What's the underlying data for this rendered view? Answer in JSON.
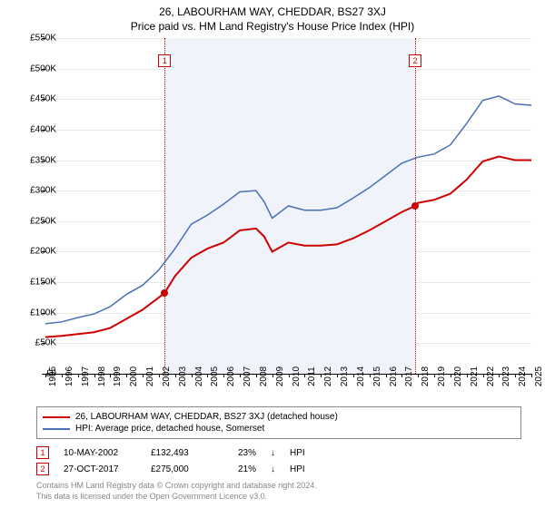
{
  "title": "26, LABOURHAM WAY, CHEDDAR, BS27 3XJ",
  "subtitle": "Price paid vs. HM Land Registry's House Price Index (HPI)",
  "chart": {
    "type": "line",
    "background_color": "#ffffff",
    "grid_color": "#e8e8e8",
    "shade_color": "#f0f3fa",
    "title_fontsize": 12,
    "label_fontsize": 10,
    "ylim": [
      0,
      550000
    ],
    "ytick_step": 50000,
    "y_ticks": [
      "£0",
      "£50K",
      "£100K",
      "£150K",
      "£200K",
      "£250K",
      "£300K",
      "£350K",
      "£400K",
      "£450K",
      "£500K",
      "£550K"
    ],
    "x_years": [
      1995,
      1996,
      1997,
      1998,
      1999,
      2000,
      2001,
      2002,
      2003,
      2004,
      2005,
      2006,
      2007,
      2008,
      2009,
      2010,
      2011,
      2012,
      2013,
      2014,
      2015,
      2016,
      2017,
      2018,
      2019,
      2020,
      2021,
      2022,
      2023,
      2024,
      2025
    ],
    "shade_start_year": 2002.36,
    "shade_end_year": 2017.82,
    "series": [
      {
        "name": "price_paid",
        "color": "#cc0000",
        "width": 2,
        "label": "26, LABOURHAM WAY, CHEDDAR, BS27 3XJ (detached house)",
        "points": [
          [
            1995,
            60000
          ],
          [
            1996,
            62000
          ],
          [
            1997,
            65000
          ],
          [
            1998,
            68000
          ],
          [
            1999,
            75000
          ],
          [
            2000,
            90000
          ],
          [
            2001,
            105000
          ],
          [
            2002,
            125000
          ],
          [
            2002.36,
            132493
          ],
          [
            2003,
            160000
          ],
          [
            2004,
            190000
          ],
          [
            2005,
            205000
          ],
          [
            2006,
            215000
          ],
          [
            2007,
            235000
          ],
          [
            2008,
            238000
          ],
          [
            2008.5,
            225000
          ],
          [
            2009,
            200000
          ],
          [
            2010,
            215000
          ],
          [
            2011,
            210000
          ],
          [
            2012,
            210000
          ],
          [
            2013,
            212000
          ],
          [
            2014,
            222000
          ],
          [
            2015,
            235000
          ],
          [
            2016,
            250000
          ],
          [
            2017,
            265000
          ],
          [
            2017.82,
            275000
          ],
          [
            2018,
            280000
          ],
          [
            2019,
            285000
          ],
          [
            2020,
            295000
          ],
          [
            2021,
            318000
          ],
          [
            2022,
            348000
          ],
          [
            2023,
            356000
          ],
          [
            2024,
            350000
          ],
          [
            2025,
            350000
          ]
        ]
      },
      {
        "name": "hpi",
        "color": "#4a6fb5",
        "width": 1.5,
        "label": "HPI: Average price, detached house, Somerset",
        "points": [
          [
            1995,
            82000
          ],
          [
            1996,
            85000
          ],
          [
            1997,
            92000
          ],
          [
            1998,
            98000
          ],
          [
            1999,
            110000
          ],
          [
            2000,
            130000
          ],
          [
            2001,
            145000
          ],
          [
            2002,
            170000
          ],
          [
            2003,
            205000
          ],
          [
            2004,
            245000
          ],
          [
            2005,
            260000
          ],
          [
            2006,
            278000
          ],
          [
            2007,
            298000
          ],
          [
            2008,
            300000
          ],
          [
            2008.5,
            282000
          ],
          [
            2009,
            255000
          ],
          [
            2010,
            275000
          ],
          [
            2011,
            268000
          ],
          [
            2012,
            268000
          ],
          [
            2013,
            272000
          ],
          [
            2014,
            288000
          ],
          [
            2015,
            305000
          ],
          [
            2016,
            325000
          ],
          [
            2017,
            345000
          ],
          [
            2018,
            355000
          ],
          [
            2019,
            360000
          ],
          [
            2020,
            375000
          ],
          [
            2021,
            410000
          ],
          [
            2022,
            448000
          ],
          [
            2023,
            455000
          ],
          [
            2024,
            442000
          ],
          [
            2025,
            440000
          ]
        ]
      }
    ],
    "sale_points": [
      {
        "n": 1,
        "year": 2002.36,
        "price": 132493,
        "color": "#cc0000"
      },
      {
        "n": 2,
        "year": 2017.82,
        "price": 275000,
        "color": "#cc0000"
      }
    ]
  },
  "sales": [
    {
      "n": "1",
      "date": "10-MAY-2002",
      "price": "£132,493",
      "pct": "23%",
      "arrow": "↓",
      "vs": "HPI",
      "color": "#cc0000"
    },
    {
      "n": "2",
      "date": "27-OCT-2017",
      "price": "£275,000",
      "pct": "21%",
      "arrow": "↓",
      "vs": "HPI",
      "color": "#cc0000"
    }
  ],
  "footer": {
    "line1": "Contains HM Land Registry data © Crown copyright and database right 2024.",
    "line2": "This data is licensed under the Open Government Licence v3.0."
  }
}
